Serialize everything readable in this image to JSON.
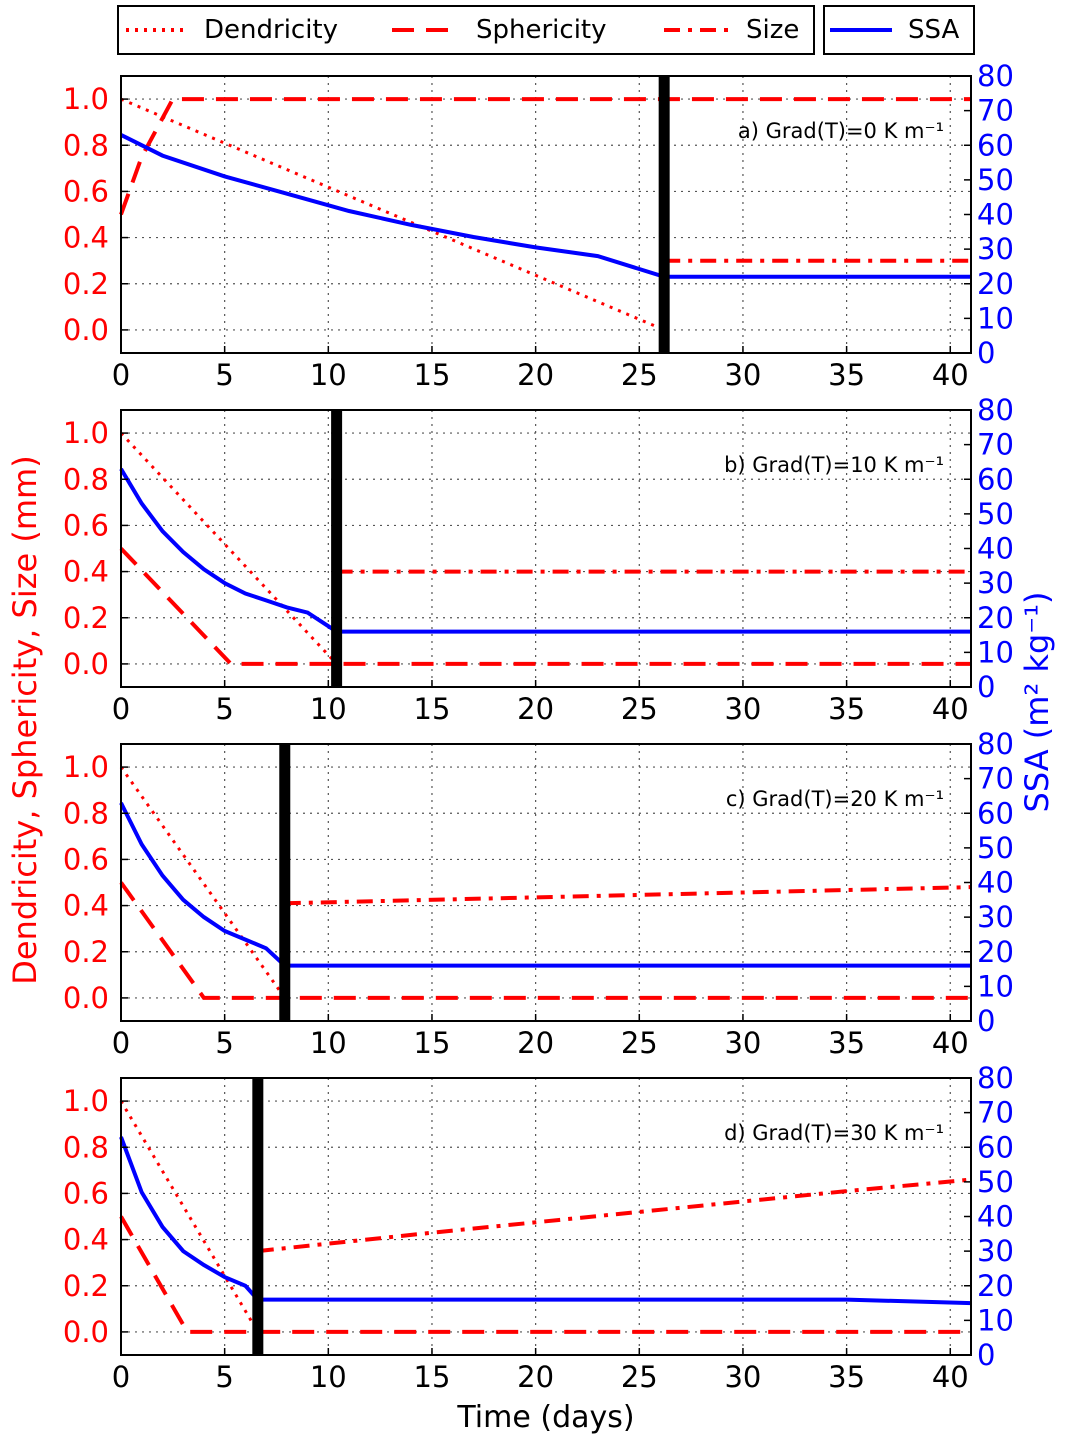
{
  "legend": {
    "entries": [
      {
        "label": "Dendricity",
        "style": "dotted",
        "color": "#ff0000"
      },
      {
        "label": "Sphericity",
        "style": "dashed",
        "color": "#ff0000"
      },
      {
        "label": "Size",
        "style": "dashdot",
        "color": "#ff0000"
      },
      {
        "label": "SSA",
        "style": "solid",
        "color": "#0000ff"
      }
    ],
    "placement": "top"
  },
  "axes_labels": {
    "left": "Dendricity, Sphericity, Size (mm)",
    "right": "SSA (m² kg⁻¹)",
    "bottom": "Time (days)"
  },
  "colors": {
    "red": "#ff0000",
    "blue": "#0000ff",
    "black": "#000000"
  },
  "chart_data": [
    {
      "type": "line",
      "annotation": "a) Grad(T)=0 K m⁻¹",
      "xlim": [
        0,
        41
      ],
      "ylim_left": [
        -0.1,
        1.1
      ],
      "ylim_right": [
        0,
        80
      ],
      "xticks": [
        0,
        5,
        10,
        15,
        20,
        25,
        30,
        35,
        40
      ],
      "yticks_left": [
        0.0,
        0.2,
        0.4,
        0.6,
        0.8,
        1.0
      ],
      "yticks_right": [
        0,
        10,
        20,
        30,
        40,
        50,
        60,
        70,
        80
      ],
      "vline_x": 26.2,
      "grid": true,
      "series": [
        {
          "name": "Dendricity",
          "axis": "left",
          "x": [
            0,
            26.2
          ],
          "y": [
            1.0,
            0.0
          ]
        },
        {
          "name": "Sphericity",
          "axis": "left",
          "x": [
            0,
            1.0,
            2.5,
            41
          ],
          "y": [
            0.5,
            0.75,
            1.0,
            1.0
          ]
        },
        {
          "name": "Size",
          "axis": "left",
          "x": [
            26.2,
            41
          ],
          "y": [
            0.3,
            0.3
          ]
        },
        {
          "name": "SSA",
          "axis": "right",
          "x": [
            0,
            2,
            5,
            8,
            11,
            14,
            17,
            20,
            23,
            26.2,
            41
          ],
          "y": [
            63,
            57,
            51,
            46,
            41,
            37,
            33.5,
            30.5,
            28,
            22,
            22
          ]
        }
      ]
    },
    {
      "type": "line",
      "annotation": "b) Grad(T)=10 K m⁻¹",
      "xlim": [
        0,
        41
      ],
      "ylim_left": [
        -0.1,
        1.1
      ],
      "ylim_right": [
        0,
        80
      ],
      "xticks": [
        0,
        5,
        10,
        15,
        20,
        25,
        30,
        35,
        40
      ],
      "yticks_left": [
        0.0,
        0.2,
        0.4,
        0.6,
        0.8,
        1.0
      ],
      "yticks_right": [
        0,
        10,
        20,
        30,
        40,
        50,
        60,
        70,
        80
      ],
      "vline_x": 10.4,
      "grid": true,
      "series": [
        {
          "name": "Dendricity",
          "axis": "left",
          "x": [
            0,
            10.4
          ],
          "y": [
            1.0,
            0.0
          ]
        },
        {
          "name": "Sphericity",
          "axis": "left",
          "x": [
            0,
            5.3,
            41
          ],
          "y": [
            0.5,
            0.0,
            0.0
          ]
        },
        {
          "name": "Size",
          "axis": "left",
          "x": [
            10.4,
            41
          ],
          "y": [
            0.4,
            0.4
          ]
        },
        {
          "name": "SSA",
          "axis": "right",
          "x": [
            0,
            1,
            2,
            3,
            4,
            5,
            6,
            7,
            8,
            9,
            10.4,
            41
          ],
          "y": [
            63,
            53,
            45,
            39,
            34,
            30,
            27,
            25,
            23,
            21.5,
            16,
            16
          ]
        }
      ]
    },
    {
      "type": "line",
      "annotation": "c) Grad(T)=20 K m⁻¹",
      "xlim": [
        0,
        41
      ],
      "ylim_left": [
        -0.1,
        1.1
      ],
      "ylim_right": [
        0,
        80
      ],
      "xticks": [
        0,
        5,
        10,
        15,
        20,
        25,
        30,
        35,
        40
      ],
      "yticks_left": [
        0.0,
        0.2,
        0.4,
        0.6,
        0.8,
        1.0
      ],
      "yticks_right": [
        0,
        10,
        20,
        30,
        40,
        50,
        60,
        70,
        80
      ],
      "vline_x": 7.9,
      "grid": true,
      "series": [
        {
          "name": "Dendricity",
          "axis": "left",
          "x": [
            0,
            7.9
          ],
          "y": [
            1.0,
            0.0
          ]
        },
        {
          "name": "Sphericity",
          "axis": "left",
          "x": [
            0,
            4.0,
            41
          ],
          "y": [
            0.5,
            0.0,
            0.0
          ]
        },
        {
          "name": "Size",
          "axis": "left",
          "x": [
            7.9,
            41
          ],
          "y": [
            0.41,
            0.48
          ]
        },
        {
          "name": "SSA",
          "axis": "right",
          "x": [
            0,
            1,
            2,
            3,
            4,
            5,
            6,
            7,
            7.9,
            41
          ],
          "y": [
            63,
            51,
            42,
            35,
            30,
            26,
            23.5,
            21,
            16,
            16
          ]
        }
      ]
    },
    {
      "type": "line",
      "annotation": "d) Grad(T)=30 K m⁻¹",
      "xlim": [
        0,
        41
      ],
      "ylim_left": [
        -0.1,
        1.1
      ],
      "ylim_right": [
        0,
        80
      ],
      "xticks": [
        0,
        5,
        10,
        15,
        20,
        25,
        30,
        35,
        40
      ],
      "yticks_left": [
        0.0,
        0.2,
        0.4,
        0.6,
        0.8,
        1.0
      ],
      "yticks_right": [
        0,
        10,
        20,
        30,
        40,
        50,
        60,
        70,
        80
      ],
      "vline_x": 6.6,
      "grid": true,
      "series": [
        {
          "name": "Dendricity",
          "axis": "left",
          "x": [
            0,
            6.6
          ],
          "y": [
            1.0,
            0.0
          ]
        },
        {
          "name": "Sphericity",
          "axis": "left",
          "x": [
            0,
            3.2,
            41
          ],
          "y": [
            0.5,
            0.0,
            0.0
          ]
        },
        {
          "name": "Size",
          "axis": "left",
          "x": [
            6.6,
            15,
            25,
            35,
            41
          ],
          "y": [
            0.35,
            0.43,
            0.52,
            0.61,
            0.66
          ]
        },
        {
          "name": "SSA",
          "axis": "right",
          "x": [
            0,
            1,
            2,
            3,
            4,
            5,
            6,
            6.6,
            35,
            41
          ],
          "y": [
            63,
            47,
            37,
            30,
            26,
            22.5,
            20,
            16,
            16,
            15
          ]
        }
      ]
    }
  ]
}
